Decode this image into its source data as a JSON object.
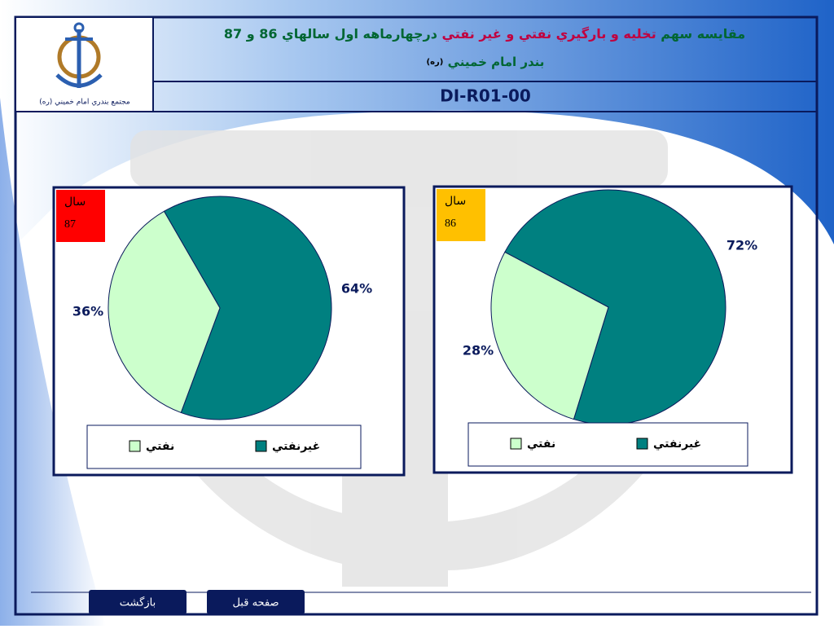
{
  "header": {
    "title_parts": [
      "مقایسه سهم ",
      "تخليه و بارگيري نفتي و غير نفتي",
      " درچهارماهه اول سالهاي 86 و 87"
    ],
    "subtitle": "بندر امام خميني",
    "subtitle_note": "(ره)",
    "code": "DI-R01-00",
    "logo_caption": "مجتمع بندري امام خميني (ره)"
  },
  "chart_data": [
    {
      "type": "pie",
      "title": "سال",
      "subtitle": "87",
      "badge_color": "#ff0000",
      "categories": [
        "نفتي",
        "غيرنفتي"
      ],
      "values": [
        36,
        64
      ],
      "value_labels": [
        "36%",
        "64%"
      ],
      "colors": [
        "#ccffcc",
        "#008080"
      ]
    },
    {
      "type": "pie",
      "title": "سال",
      "subtitle": "86",
      "badge_color": "#ffc000",
      "categories": [
        "نفتي",
        "غيرنفتي"
      ],
      "values": [
        28,
        72
      ],
      "value_labels": [
        "28%",
        "72%"
      ],
      "colors": [
        "#ccffcc",
        "#008080"
      ]
    }
  ],
  "nav": {
    "back": "بازگشت",
    "previous": "صفحه قبل"
  }
}
